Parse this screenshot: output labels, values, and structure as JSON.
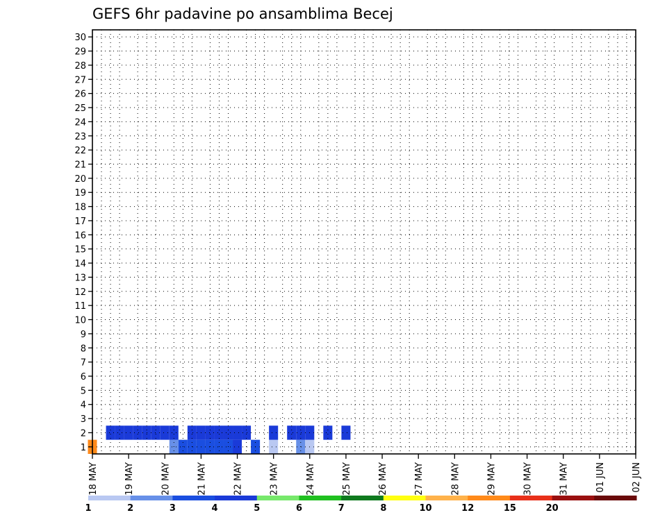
{
  "chart_data": {
    "type": "heatmap",
    "title": "GEFS 6hr padavine po ansamblima Becej",
    "y_ticks": [
      1,
      2,
      3,
      4,
      5,
      6,
      7,
      8,
      9,
      10,
      11,
      12,
      13,
      14,
      15,
      16,
      17,
      18,
      19,
      20,
      21,
      22,
      23,
      24,
      25,
      26,
      27,
      28,
      29,
      30
    ],
    "x_ticks": [
      "18 MAY",
      "19 MAY",
      "20 MAY",
      "21 MAY",
      "22 MAY",
      "23 MAY",
      "24 MAY",
      "25 MAY",
      "26 MAY",
      "27 MAY",
      "28 MAY",
      "29 MAY",
      "30 MAY",
      "31 MAY",
      "01 JUN",
      "02 JUN"
    ],
    "colorbar": {
      "labels": [
        "1",
        "2",
        "3",
        "4",
        "5",
        "6",
        "7",
        "8",
        "10",
        "12",
        "15",
        "20"
      ],
      "colors": [
        "#b9c8f2",
        "#6790e8",
        "#1a4ee0",
        "#1a3ad8",
        "#77e86b",
        "#20c020",
        "#0f7a1e",
        "#ffff10",
        "#ffb24a",
        "#ff8a1a",
        "#e8301a",
        "#9a1010",
        "#6a0a0a"
      ]
    },
    "grid": true,
    "cells": {
      "1": [
        [
          0,
          10,
          0
        ],
        [
          4,
          0,
          3
        ],
        [
          5,
          0,
          0
        ],
        [
          6,
          0,
          0
        ],
        [
          7,
          0,
          0
        ],
        [
          8,
          0,
          0
        ],
        [
          9,
          2,
          0
        ],
        [
          10,
          3,
          0
        ],
        [
          11,
          3,
          0
        ],
        [
          12,
          3,
          0
        ],
        [
          13,
          3,
          0
        ],
        [
          14,
          3,
          0
        ],
        [
          15,
          3,
          0
        ],
        [
          16,
          4,
          0
        ],
        [
          17,
          0,
          0
        ],
        [
          18,
          3,
          0
        ],
        [
          19,
          0,
          0
        ],
        [
          20,
          1,
          0
        ],
        [
          21,
          0,
          0
        ],
        [
          22,
          0,
          0
        ],
        [
          23,
          2,
          0
        ],
        [
          24,
          1,
          0
        ],
        [
          25,
          0,
          0
        ],
        [
          26,
          0,
          0
        ],
        [
          27,
          0,
          0
        ],
        [
          28,
          0,
          0
        ],
        [
          29,
          0,
          0
        ],
        [
          30,
          0,
          0
        ]
      ],
      "2": [
        [
          2,
          0,
          0
        ],
        [
          2,
          4,
          2
        ],
        [
          3,
          4,
          0
        ],
        [
          4,
          4,
          1
        ],
        [
          5,
          4,
          0
        ],
        [
          6,
          4,
          0
        ],
        [
          7,
          4,
          0
        ],
        [
          8,
          4,
          0
        ],
        [
          9,
          4,
          0
        ],
        [
          10,
          0,
          0
        ],
        [
          11,
          4,
          0
        ],
        [
          12,
          4,
          0
        ],
        [
          13,
          4,
          0
        ],
        [
          14,
          4,
          0
        ],
        [
          15,
          4,
          0
        ],
        [
          16,
          4,
          1
        ],
        [
          17,
          4,
          0
        ],
        [
          18,
          0,
          0
        ],
        [
          19,
          0,
          0
        ],
        [
          20,
          4,
          0
        ],
        [
          21,
          0,
          0
        ],
        [
          22,
          4,
          0
        ],
        [
          23,
          4,
          2
        ],
        [
          24,
          4,
          0
        ],
        [
          25,
          0,
          0
        ],
        [
          26,
          4,
          0
        ],
        [
          27,
          0,
          0
        ],
        [
          28,
          4,
          0
        ],
        [
          29,
          0,
          0
        ],
        [
          30,
          0,
          0
        ]
      ]
    },
    "notes": "Ensemble members 1-30 (y) versus 6-hour forecast steps from 18 MAY to 02 JUN (x)."
  }
}
